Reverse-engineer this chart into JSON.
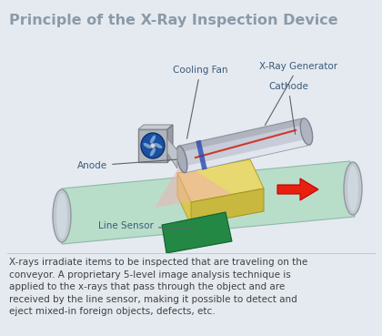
{
  "title": "Principle of the X-Ray Inspection Device",
  "title_color": "#8a9aaa",
  "title_fontsize": 11.5,
  "bg_color": "#e5eaf0",
  "labels": {
    "cooling_fan": "Cooling Fan",
    "xray_generator": "X-Ray Generator",
    "cathode": "Cathode",
    "anode": "Anode",
    "line_sensor": "Line Sensor"
  },
  "body_text": "X-rays irradiate items to be inspected that are traveling on the\nconveyor. A proprietary 5-level image analysis technique is\napplied to the x-rays that pass through the object and are\nreceived by the line sensor, making it possible to detect and\neject mixed-in foreign objects, defects, etc.",
  "label_color": "#3a5a7a",
  "label_fontsize": 7.5,
  "body_fontsize": 7.5,
  "body_color": "#404040"
}
